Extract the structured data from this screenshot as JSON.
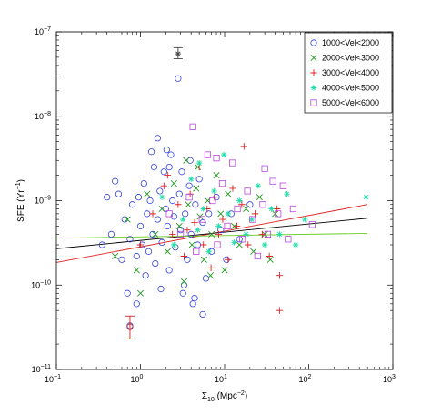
{
  "chart_data": {
    "type": "scatter",
    "xscale": "log",
    "yscale": "log",
    "xlim": [
      0.1,
      1000
    ],
    "ylim": [
      1e-11,
      1e-07
    ],
    "xlabel": "Σ10 (Mpc⁻²)",
    "xlabel_main": "Σ",
    "xlabel_sub": "10",
    "xlabel_rest": " (Mpc",
    "xlabel_sup": "−2",
    "xlabel_end": ")",
    "ylabel": "SFE (Yr⁻¹)",
    "ylabel_main": "SFE (Yr",
    "ylabel_sup": "−1",
    "ylabel_end": ")",
    "x_tick_labels": [
      {
        "value": 0.1,
        "base": "10",
        "exp": "−1"
      },
      {
        "value": 1,
        "base": "10",
        "exp": "0"
      },
      {
        "value": 10,
        "base": "10",
        "exp": "1"
      },
      {
        "value": 100,
        "base": "10",
        "exp": "2"
      },
      {
        "value": 1000,
        "base": "10",
        "exp": "3"
      }
    ],
    "y_tick_labels": [
      {
        "value": 1e-11,
        "base": "10",
        "exp": "−11"
      },
      {
        "value": 1e-10,
        "base": "10",
        "exp": "−10"
      },
      {
        "value": 1e-09,
        "base": "10",
        "exp": "−9"
      },
      {
        "value": 1e-08,
        "base": "10",
        "exp": "−8"
      },
      {
        "value": 1e-07,
        "base": "10",
        "exp": "−7"
      }
    ],
    "legend_position": "top-right",
    "series": [
      {
        "name": "1000<Vel<2000",
        "marker": "circle",
        "color": "#3344dd",
        "points": [
          [
            0.75,
            3.5e-10
          ],
          [
            0.8,
            9e-10
          ],
          [
            0.9,
            2.2e-10
          ],
          [
            0.95,
            1.1e-09
          ],
          [
            1.0,
            5e-10
          ],
          [
            1.05,
            3e-10
          ],
          [
            1.1,
            1.6e-09
          ],
          [
            1.2,
            7e-10
          ],
          [
            1.25,
            2.5e-10
          ],
          [
            1.3,
            1e-09
          ],
          [
            1.4,
            4e-10
          ],
          [
            1.5,
            1.8e-10
          ],
          [
            1.6,
            6e-10
          ],
          [
            1.7,
            1.3e-09
          ],
          [
            1.8,
            3.2e-10
          ],
          [
            1.9,
            2.2e-09
          ],
          [
            2.0,
            8e-10
          ],
          [
            2.1,
            5e-10
          ],
          [
            2.2,
            1.5e-10
          ],
          [
            2.3,
            3.5e-09
          ],
          [
            2.4,
            1e-09
          ],
          [
            2.5,
            6.5e-10
          ],
          [
            2.6,
            2.8e-10
          ],
          [
            2.8,
            2.8e-08
          ],
          [
            2.9,
            1.2e-09
          ],
          [
            3.0,
            4.5e-10
          ],
          [
            3.2,
            8e-11
          ],
          [
            3.4,
            7e-10
          ],
          [
            3.6,
            2e-10
          ],
          [
            3.8,
            1.5e-09
          ],
          [
            4.0,
            4e-10
          ],
          [
            4.2,
            6e-11
          ],
          [
            4.5,
            9e-10
          ],
          [
            4.8,
            3e-10
          ],
          [
            5.0,
            1.8e-09
          ],
          [
            5.5,
            5.5e-10
          ],
          [
            6.0,
            1.2e-10
          ],
          [
            6.5,
            7e-10
          ],
          [
            7.0,
            2.5e-10
          ],
          [
            8.0,
            1.1e-09
          ],
          [
            0.45,
            4e-10
          ],
          [
            0.55,
            1.2e-09
          ],
          [
            0.6,
            2e-10
          ],
          [
            0.65,
            6e-10
          ],
          [
            0.7,
            8e-11
          ],
          [
            0.5,
            1.7e-09
          ],
          [
            0.35,
            3e-10
          ],
          [
            1.15,
            1.3e-10
          ],
          [
            1.45,
            2.5e-09
          ],
          [
            1.75,
            9e-11
          ],
          [
            2.05,
            4e-09
          ],
          [
            3.1,
            2.2e-09
          ],
          [
            3.3,
            1e-10
          ],
          [
            3.9,
            3e-09
          ],
          [
            4.4,
            7e-11
          ],
          [
            9.0,
            4.5e-10
          ],
          [
            10.5,
            2e-10
          ],
          [
            12.0,
            7e-10
          ],
          [
            15.0,
            3.5e-10
          ],
          [
            20.0,
            9e-10
          ],
          [
            0.75,
            3.3e-11
          ],
          [
            0.9,
            6e-11
          ],
          [
            1.6,
            5.5e-09
          ],
          [
            2.2,
            2.5e-09
          ],
          [
            5.5,
            4.5e-11
          ],
          [
            1.35,
            3.8e-09
          ],
          [
            0.4,
            1.1e-09
          ]
        ]
      },
      {
        "name": "2000<Vel<3000",
        "marker": "x",
        "color": "#229922",
        "points": [
          [
            0.7,
            6e-10
          ],
          [
            0.9,
            1.5e-10
          ],
          [
            1.2,
            1.2e-09
          ],
          [
            1.5,
            4e-10
          ],
          [
            1.8,
            8e-10
          ],
          [
            2.1,
            2.5e-10
          ],
          [
            2.5,
            1.6e-09
          ],
          [
            2.9,
            5e-10
          ],
          [
            3.3,
            1.1e-10
          ],
          [
            3.7,
            9e-10
          ],
          [
            4.1,
            3e-10
          ],
          [
            4.6,
            1.4e-09
          ],
          [
            5.1,
            6.5e-10
          ],
          [
            5.7,
            2e-10
          ],
          [
            6.3,
            1e-09
          ],
          [
            7.0,
            4e-10
          ],
          [
            8.0,
            2e-09
          ],
          [
            9.0,
            7e-10
          ],
          [
            10.0,
            1.5e-10
          ],
          [
            11.0,
            1.2e-09
          ],
          [
            13.0,
            5e-10
          ],
          [
            15.0,
            3e-10
          ],
          [
            18.0,
            8e-10
          ],
          [
            22.0,
            2.5e-10
          ],
          [
            26.0,
            1.1e-09
          ],
          [
            30.0,
            4e-10
          ],
          [
            35.0,
            2e-10
          ],
          [
            40.0,
            7e-10
          ],
          [
            3.5,
            3e-09
          ],
          [
            4.8,
            2.5e-09
          ],
          [
            6.8,
            1.3e-10
          ],
          [
            0.5,
            2.2e-10
          ],
          [
            1.0,
            8e-11
          ]
        ]
      },
      {
        "name": "3000<Vel<4000",
        "marker": "plus",
        "color": "#dd2222",
        "points": [
          [
            1.0,
            3e-10
          ],
          [
            1.4,
            7e-10
          ],
          [
            1.9,
            1.5e-09
          ],
          [
            2.4,
            4e-10
          ],
          [
            2.8,
            9e-10
          ],
          [
            3.3,
            2.2e-10
          ],
          [
            3.9,
            1.2e-09
          ],
          [
            4.4,
            5.5e-10
          ],
          [
            5.0,
            2.5e-09
          ],
          [
            5.6,
            3e-10
          ],
          [
            6.2,
            8e-10
          ],
          [
            6.9,
            1.6e-10
          ],
          [
            7.6,
            1.1e-09
          ],
          [
            8.5,
            4e-10
          ],
          [
            9.5,
            6e-10
          ],
          [
            11.0,
            2e-10
          ],
          [
            12.5,
            1.4e-09
          ],
          [
            14.0,
            5e-10
          ],
          [
            16.0,
            9e-10
          ],
          [
            19.0,
            3e-10
          ],
          [
            23.0,
            7e-10
          ],
          [
            28.0,
            4e-10
          ],
          [
            34.0,
            2.2e-10
          ],
          [
            42.0,
            8e-10
          ],
          [
            45.0,
            1.3e-10
          ],
          [
            45.0,
            5e-11
          ],
          [
            2.1,
            2e-09
          ],
          [
            3.6,
            4.5e-10
          ],
          [
            17.0,
            4.4e-09
          ]
        ]
      },
      {
        "name": "4000<Vel<5000",
        "marker": "star",
        "color": "#22ddaa",
        "points": [
          [
            1.8,
            1.1e-09
          ],
          [
            2.5,
            3e-10
          ],
          [
            3.2,
            6e-10
          ],
          [
            4.0,
            1.8e-09
          ],
          [
            4.8,
            4.5e-10
          ],
          [
            5.6,
            8e-10
          ],
          [
            6.5,
            2.5e-10
          ],
          [
            7.5,
            1.3e-09
          ],
          [
            8.5,
            5e-10
          ],
          [
            9.8,
            3.5e-09
          ],
          [
            11.0,
            7e-10
          ],
          [
            13.0,
            3.2e-10
          ],
          [
            15.0,
            1e-09
          ],
          [
            18.0,
            4e-10
          ],
          [
            21.0,
            6e-10
          ],
          [
            25.0,
            1.5e-09
          ],
          [
            30.0,
            3e-10
          ],
          [
            36.0,
            8e-10
          ],
          [
            45.0,
            4e-10
          ],
          [
            55.0,
            1.2e-09
          ],
          [
            70.0,
            3e-10
          ],
          [
            90.0,
            6e-10
          ],
          [
            480.0,
            1.1e-09
          ],
          [
            5.0,
            2.8e-09
          ]
        ]
      },
      {
        "name": "5000<Vel<6000",
        "marker": "square",
        "color": "#bb44dd",
        "points": [
          [
            2.2,
            7e-10
          ],
          [
            3.0,
            4e-10
          ],
          [
            3.8,
            1.1e-09
          ],
          [
            4.6,
            2.5e-10
          ],
          [
            5.4,
            6e-10
          ],
          [
            6.3,
            3.5e-09
          ],
          [
            7.2,
            1e-09
          ],
          [
            8.2,
            3e-10
          ],
          [
            9.4,
            1.6e-09
          ],
          [
            10.8,
            5e-10
          ],
          [
            12.4,
            2.8e-09
          ],
          [
            14.2,
            8e-10
          ],
          [
            16.3,
            3.5e-10
          ],
          [
            18.7,
            1.3e-09
          ],
          [
            21.5,
            6e-10
          ],
          [
            24.7,
            2.2e-10
          ],
          [
            28.4,
            9e-10
          ],
          [
            32.6,
            4e-10
          ],
          [
            37.5,
            1.7e-09
          ],
          [
            43.1,
            7e-10
          ],
          [
            49.5,
            1.5e-09
          ],
          [
            56.9,
            3.5e-10
          ],
          [
            65.4,
            8e-10
          ],
          [
            110.0,
            5.2e-10
          ],
          [
            4.2,
            7.5e-09
          ],
          [
            8.0,
            3.2e-09
          ],
          [
            30.0,
            2.4e-09
          ]
        ]
      }
    ],
    "errorbars": [
      {
        "x": 2.8,
        "y": 5.5e-08,
        "ylow": 4.8e-08,
        "yhigh": 6.5e-08,
        "color": "#444444",
        "marker": "star"
      },
      {
        "x": 0.75,
        "y": 3.2e-11,
        "ylow": 2.3e-11,
        "yhigh": 4.3e-11,
        "color": "#cc2222",
        "marker": "circle"
      }
    ],
    "fit_lines": [
      {
        "color": "#dd2222",
        "x": [
          0.1,
          500
        ],
        "y": [
          1.85e-10,
          9e-10
        ]
      },
      {
        "color": "#000000",
        "x": [
          0.1,
          500
        ],
        "y": [
          2.7e-10,
          6.2e-10
        ]
      },
      {
        "color": "#66cc22",
        "x": [
          0.1,
          500
        ],
        "y": [
          3.6e-10,
          4.1e-10
        ]
      }
    ]
  }
}
